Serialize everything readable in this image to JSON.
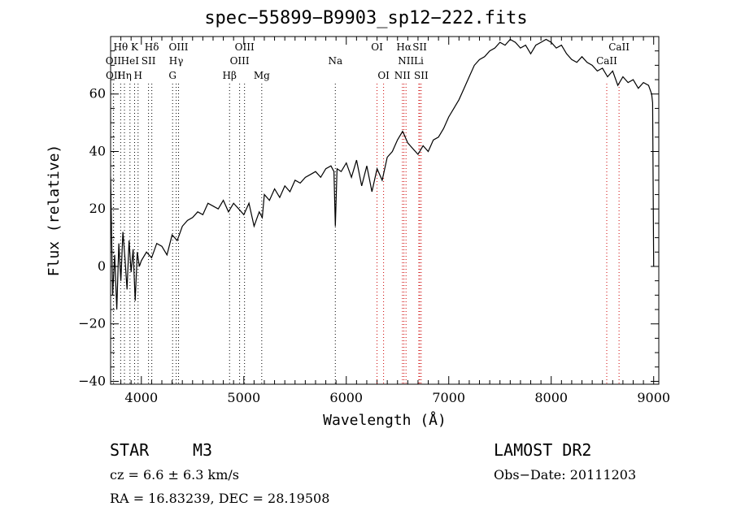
{
  "chart_data": {
    "type": "line",
    "title": "spec−55899−B9903_sp12−222.fits",
    "xlabel": "Wavelength (Å)",
    "ylabel": "Flux (relative)",
    "xlim": [
      3700,
      9050
    ],
    "ylim": [
      -41,
      80
    ],
    "xticks": [
      4000,
      5000,
      6000,
      7000,
      8000,
      9000
    ],
    "yticks": [
      -40,
      -20,
      0,
      20,
      40,
      60
    ],
    "ytick_labels": [
      "−40",
      "−20",
      "0",
      "20",
      "40",
      "60"
    ],
    "grid": false,
    "line_color": "#000000",
    "marker_color": "#cc0000",
    "series": [
      {
        "x": [
          3700,
          3720,
          3740,
          3760,
          3780,
          3800,
          3820,
          3840,
          3860,
          3880,
          3900,
          3920,
          3940,
          3960,
          3980,
          4000,
          4050,
          4100,
          4150,
          4200,
          4250,
          4300,
          4350,
          4400,
          4450,
          4500,
          4550,
          4600,
          4650,
          4700,
          4750,
          4800,
          4850,
          4900,
          4950,
          5000,
          5050,
          5100,
          5150,
          5180,
          5200,
          5250,
          5300,
          5350,
          5400,
          5450,
          5500,
          5550,
          5600,
          5650,
          5700,
          5750,
          5800,
          5850,
          5880,
          5893,
          5910,
          5950,
          6000,
          6050,
          6100,
          6150,
          6200,
          6250,
          6300,
          6350,
          6400,
          6450,
          6500,
          6550,
          6563,
          6600,
          6650,
          6700,
          6750,
          6800,
          6850,
          6900,
          6950,
          7000,
          7050,
          7100,
          7150,
          7200,
          7250,
          7300,
          7350,
          7400,
          7450,
          7500,
          7550,
          7600,
          7650,
          7700,
          7750,
          7800,
          7850,
          7900,
          7950,
          8000,
          8050,
          8100,
          8150,
          8200,
          8250,
          8300,
          8350,
          8400,
          8450,
          8500,
          8550,
          8600,
          8650,
          8700,
          8750,
          8800,
          8850,
          8900,
          8950,
          8980,
          8990,
          9000
        ],
        "values": [
          31,
          -10,
          4,
          -15,
          8,
          -5,
          12,
          3,
          -8,
          9,
          -2,
          6,
          -12,
          5,
          0,
          2,
          5,
          3,
          8,
          7,
          4,
          11,
          9,
          14,
          16,
          17,
          19,
          18,
          22,
          21,
          20,
          23,
          19,
          22,
          20,
          18,
          22,
          14,
          19,
          17,
          25,
          23,
          27,
          24,
          28,
          26,
          30,
          29,
          31,
          32,
          33,
          31,
          34,
          35,
          33,
          14,
          34,
          33,
          36,
          31,
          37,
          28,
          35,
          26,
          34,
          30,
          38,
          40,
          44,
          47,
          46,
          43,
          41,
          39,
          42,
          40,
          44,
          45,
          48,
          52,
          55,
          58,
          62,
          66,
          70,
          72,
          73,
          75,
          76,
          78,
          77,
          79,
          78,
          76,
          77,
          74,
          77,
          78,
          79,
          78,
          76,
          77,
          74,
          72,
          71,
          73,
          71,
          70,
          68,
          69,
          66,
          68,
          63,
          66,
          64,
          65,
          62,
          64,
          63,
          60,
          57,
          0
        ]
      }
    ],
    "lines": [
      {
        "label": "Hθ",
        "x": 3798,
        "row": 0,
        "color": "#000000"
      },
      {
        "label": "K",
        "x": 3934,
        "row": 0,
        "color": "#000000"
      },
      {
        "label": "Hδ",
        "x": 4102,
        "row": 0,
        "color": "#000000"
      },
      {
        "label": "OIII",
        "x": 4363,
        "row": 0,
        "color": "#000000"
      },
      {
        "label": "OIII",
        "x": 5007,
        "row": 0,
        "color": "#000000"
      },
      {
        "label": "OI",
        "x": 6300,
        "row": 0,
        "color": "#cc0000"
      },
      {
        "label": "Hα",
        "x": 6563,
        "row": 0,
        "color": "#cc0000"
      },
      {
        "label": "SII",
        "x": 6717,
        "row": 0,
        "color": "#cc0000"
      },
      {
        "label": "CaII",
        "x": 8662,
        "row": 0,
        "color": "#cc0000"
      },
      {
        "label": "OII",
        "x": 3727,
        "row": 1,
        "color": "#000000"
      },
      {
        "label": "HeI",
        "x": 3889,
        "row": 1,
        "color": "#000000"
      },
      {
        "label": "SII",
        "x": 4070,
        "row": 1,
        "color": "#000000"
      },
      {
        "label": "Hγ",
        "x": 4340,
        "row": 1,
        "color": "#000000"
      },
      {
        "label": "OIII",
        "x": 4959,
        "row": 1,
        "color": "#000000"
      },
      {
        "label": "Na",
        "x": 5893,
        "row": 1,
        "color": "#000000"
      },
      {
        "label": "NII",
        "x": 6583,
        "row": 1,
        "color": "#cc0000"
      },
      {
        "label": "Li",
        "x": 6708,
        "row": 1,
        "color": "#cc0000"
      },
      {
        "label": "CaII",
        "x": 8542,
        "row": 1,
        "color": "#cc0000"
      },
      {
        "label": "OII",
        "x": 3729,
        "row": 2,
        "color": "#000000"
      },
      {
        "label": "Hη",
        "x": 3835,
        "row": 2,
        "color": "#000000"
      },
      {
        "label": "H",
        "x": 3968,
        "row": 2,
        "color": "#000000"
      },
      {
        "label": "G",
        "x": 4305,
        "row": 2,
        "color": "#000000"
      },
      {
        "label": "Hβ",
        "x": 4861,
        "row": 2,
        "color": "#000000"
      },
      {
        "label": "Mg",
        "x": 5175,
        "row": 2,
        "color": "#000000"
      },
      {
        "label": "OI",
        "x": 6364,
        "row": 2,
        "color": "#cc0000"
      },
      {
        "label": "NII",
        "x": 6548,
        "row": 2,
        "color": "#cc0000"
      },
      {
        "label": "SII",
        "x": 6731,
        "row": 2,
        "color": "#cc0000"
      }
    ]
  },
  "info": {
    "object_class": "STAR",
    "subclass": "M3",
    "survey": "LAMOST DR2",
    "cz": "cz = 6.6 ± 6.3 km/s",
    "obs_date": "Obs−Date: 20111203",
    "coords": "RA =  16.83239, DEC =  28.19508"
  }
}
